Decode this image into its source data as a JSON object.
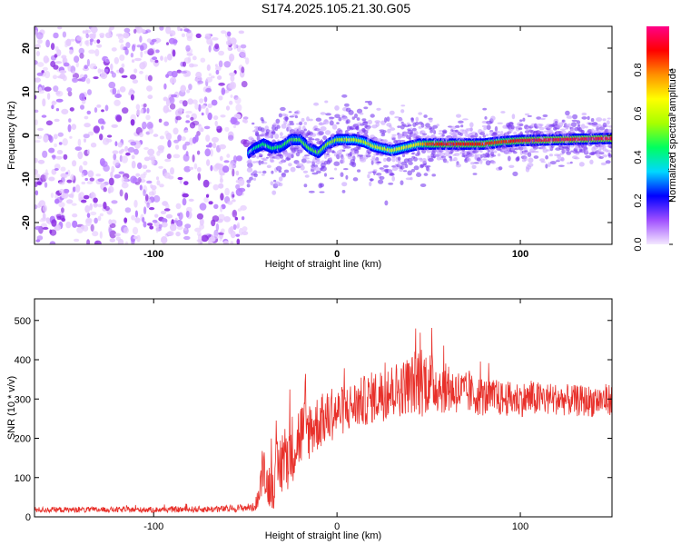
{
  "title": "S174.2025.105.21.30.G05",
  "chart_data": [
    {
      "type": "heatmap",
      "name": "spectrogram",
      "xlabel": "Height of straight line (km)",
      "ylabel": "Frequency (Hz)",
      "xlim": [
        -165,
        150
      ],
      "ylim": [
        -25,
        25
      ],
      "xticks": [
        -100,
        0,
        100
      ],
      "yticks": [
        20,
        10,
        0,
        -10,
        -20
      ],
      "xtick_labels": [
        "-100",
        "0",
        "100"
      ],
      "ytick_labels": [
        "20",
        "10",
        "0",
        "-10",
        "-20"
      ],
      "colorbar": {
        "label": "Normalized spectral amplitude",
        "range": [
          0,
          1
        ],
        "ticks": [
          0.0,
          0.2,
          0.4,
          0.6,
          0.8
        ],
        "tick_labels": [
          "0.0",
          "0.2",
          "0.4",
          "0.6",
          "0.8"
        ],
        "colormap": [
          "#f4e8ff",
          "#a050ff",
          "#0000ff",
          "#00d8ff",
          "#00ff60",
          "#a8ff00",
          "#ffff00",
          "#ff9000",
          "#ff0000",
          "#ff0088"
        ]
      },
      "noise_region_x": [
        -165,
        -50
      ],
      "signal_track": {
        "x": [
          -48,
          -45,
          -40,
          -35,
          -30,
          -25,
          -20,
          -15,
          -10,
          -5,
          0,
          5,
          10,
          15,
          20,
          25,
          30,
          35,
          40,
          45,
          50,
          60,
          70,
          80,
          90,
          100,
          110,
          120,
          130,
          140,
          150
        ],
        "y": [
          -4,
          -3,
          -2,
          -3,
          -2.5,
          -1,
          -1,
          -3,
          -4,
          -2,
          -1,
          -1,
          -1,
          -1.5,
          -2.5,
          -3,
          -3.5,
          -3,
          -2.5,
          -2,
          -2,
          -2,
          -2,
          -2,
          -1.5,
          -1.2,
          -1.1,
          -1.0,
          -0.9,
          -0.8,
          -0.7
        ],
        "amp": [
          0.35,
          0.4,
          0.45,
          0.45,
          0.45,
          0.5,
          0.5,
          0.5,
          0.5,
          0.55,
          0.55,
          0.6,
          0.6,
          0.6,
          0.62,
          0.62,
          0.62,
          0.65,
          0.65,
          0.7,
          0.85,
          0.9,
          0.9,
          0.88,
          0.85,
          0.92,
          0.95,
          0.95,
          0.95,
          0.95,
          0.95
        ]
      }
    },
    {
      "type": "line",
      "name": "snr",
      "xlabel": "Height of straight line (km)",
      "ylabel": "SNR (10 * v/v)",
      "xlim": [
        -165,
        150
      ],
      "ylim": [
        0,
        555
      ],
      "xticks": [
        -100,
        0,
        100
      ],
      "yticks": [
        0,
        100,
        200,
        300,
        400,
        500
      ],
      "xtick_labels": [
        "-100",
        "0",
        "100"
      ],
      "ytick_labels": [
        "0",
        "100",
        "200",
        "300",
        "400",
        "500"
      ],
      "color": "#e8302a",
      "envelope": {
        "x": [
          -165,
          -100,
          -60,
          -45,
          -42,
          -40,
          -38,
          -35,
          -30,
          -25,
          -20,
          -10,
          0,
          10,
          20,
          30,
          40,
          45,
          50,
          60,
          70,
          80,
          90,
          100,
          110,
          120,
          130,
          140,
          150
        ],
        "mean": [
          18,
          18,
          20,
          25,
          60,
          140,
          80,
          90,
          140,
          170,
          210,
          240,
          265,
          285,
          305,
          320,
          335,
          350,
          345,
          325,
          315,
          305,
          300,
          300,
          300,
          300,
          295,
          295,
          300
        ],
        "spread": [
          8,
          8,
          10,
          12,
          40,
          70,
          60,
          80,
          100,
          100,
          100,
          80,
          70,
          70,
          75,
          80,
          80,
          110,
          90,
          70,
          60,
          55,
          50,
          50,
          50,
          45,
          45,
          45,
          45
        ]
      }
    }
  ]
}
